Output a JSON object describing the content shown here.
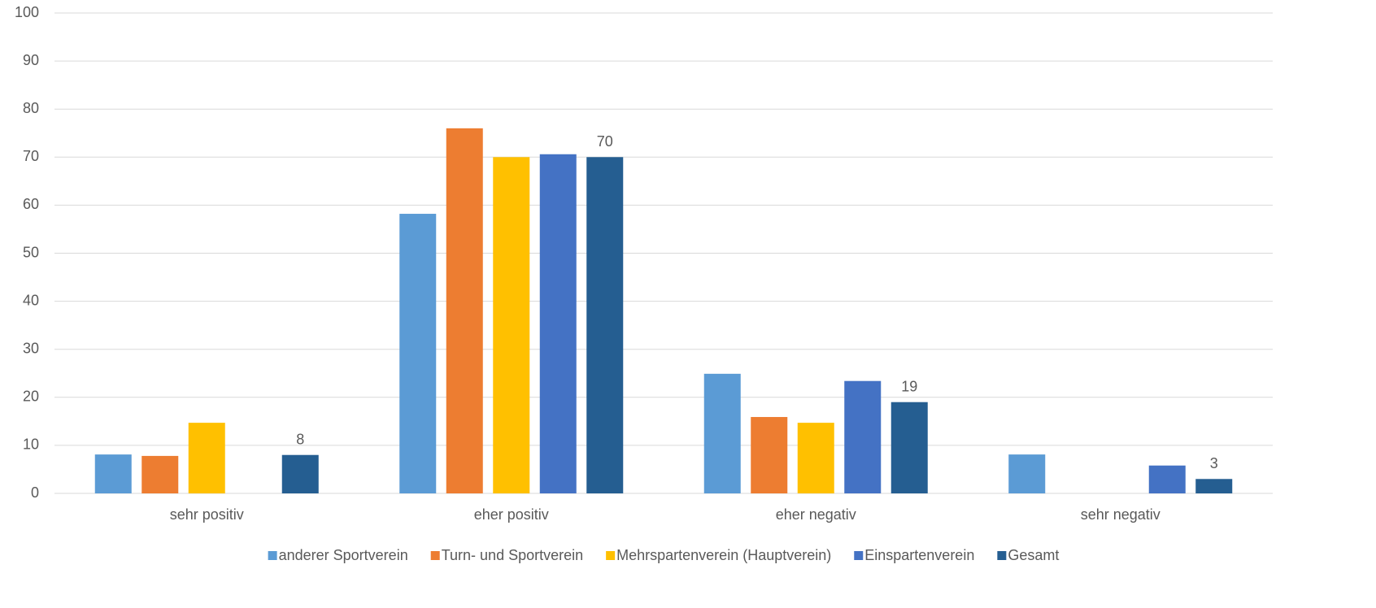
{
  "chart_data": {
    "type": "bar",
    "categories": [
      "sehr positiv",
      "eher positiv",
      "eher negativ",
      "sehr negativ"
    ],
    "series": [
      {
        "name": "anderer Sportverein",
        "color": "#5b9bd5",
        "values": [
          8.1,
          58.2,
          24.9,
          8.1
        ]
      },
      {
        "name": "Turn- und Sportverein",
        "color": "#ed7d31",
        "values": [
          7.8,
          76.0,
          15.9,
          0
        ]
      },
      {
        "name": "Mehrspartenverein (Hauptverein)",
        "color": "#ffc000",
        "values": [
          14.7,
          70.0,
          14.7,
          0
        ]
      },
      {
        "name": "Einspartenverein",
        "color": "#4472c4",
        "values": [
          0,
          70.6,
          23.4,
          5.8
        ]
      },
      {
        "name": "Gesamt",
        "color": "#255e91",
        "values": [
          8,
          70,
          19,
          3
        ],
        "data_labels": true
      }
    ],
    "ylim": [
      0,
      100
    ],
    "yticks": [
      0,
      10,
      20,
      30,
      40,
      50,
      60,
      70,
      80,
      90,
      100
    ],
    "grid": true,
    "legend": "bottom"
  }
}
